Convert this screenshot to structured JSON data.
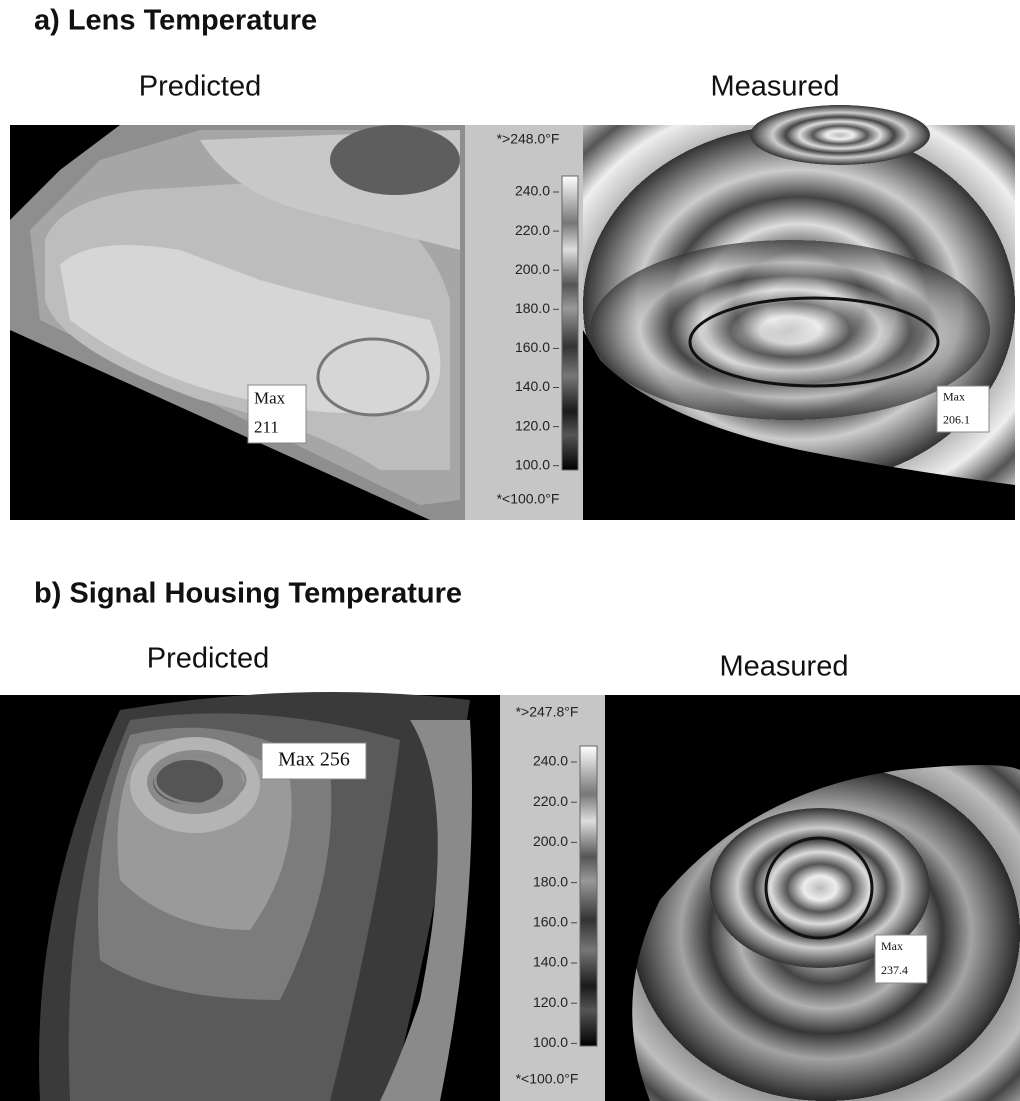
{
  "panels": [
    {
      "title": "a) Lens Temperature",
      "predicted": {
        "label": "Predicted",
        "annotation": [
          "Max",
          "211"
        ]
      },
      "measured": {
        "label": "Measured",
        "annotation": [
          "Max",
          "206.1"
        ]
      },
      "colorbar": {
        "top": "*>248.0°F",
        "ticks": [
          "240.0",
          "220.0",
          "200.0",
          "180.0",
          "160.0",
          "140.0",
          "120.0",
          "100.0"
        ],
        "bottom": "*<100.0°F"
      }
    },
    {
      "title": "b) Signal Housing Temperature",
      "predicted": {
        "label": "Predicted",
        "annotation": [
          "Max 256"
        ]
      },
      "measured": {
        "label": "Measured",
        "annotation": [
          "Max",
          "237.4"
        ]
      },
      "colorbar": {
        "top": "*>247.8°F",
        "ticks": [
          "240.0",
          "220.0",
          "200.0",
          "180.0",
          "160.0",
          "140.0",
          "120.0",
          "100.0"
        ],
        "bottom": "*<100.0°F"
      }
    }
  ]
}
